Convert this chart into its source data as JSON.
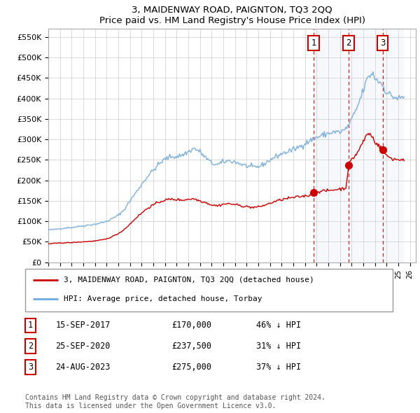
{
  "title": "3, MAIDENWAY ROAD, PAIGNTON, TQ3 2QQ",
  "subtitle": "Price paid vs. HM Land Registry's House Price Index (HPI)",
  "ylabel_ticks": [
    "£0",
    "£50K",
    "£100K",
    "£150K",
    "£200K",
    "£250K",
    "£300K",
    "£350K",
    "£400K",
    "£450K",
    "£500K",
    "£550K"
  ],
  "ytick_values": [
    0,
    50000,
    100000,
    150000,
    200000,
    250000,
    300000,
    350000,
    400000,
    450000,
    500000,
    550000
  ],
  "ylim": [
    0,
    570000
  ],
  "hpi_color": "#6fa8dc",
  "sale_color": "#cc0000",
  "vline_color": "#cc0000",
  "shade_color": "#dce6f1",
  "sale_date_nums": [
    2017.75,
    2020.75,
    2023.65
  ],
  "sale_prices": [
    170000,
    237500,
    275000
  ],
  "sale_labels": [
    "1",
    "2",
    "3"
  ],
  "legend_items": [
    {
      "label": "3, MAIDENWAY ROAD, PAIGNTON, TQ3 2QQ (detached house)",
      "color": "#cc0000"
    },
    {
      "label": "HPI: Average price, detached house, Torbay",
      "color": "#6fa8dc"
    }
  ],
  "table_rows": [
    {
      "num": "1",
      "date": "15-SEP-2017",
      "price": "£170,000",
      "hpi": "46% ↓ HPI"
    },
    {
      "num": "2",
      "date": "25-SEP-2020",
      "price": "£237,500",
      "hpi": "31% ↓ HPI"
    },
    {
      "num": "3",
      "date": "24-AUG-2023",
      "price": "£275,000",
      "hpi": "37% ↓ HPI"
    }
  ],
  "footer": "Contains HM Land Registry data © Crown copyright and database right 2024.\nThis data is licensed under the Open Government Licence v3.0.",
  "xstart": 1995,
  "xend": 2026
}
